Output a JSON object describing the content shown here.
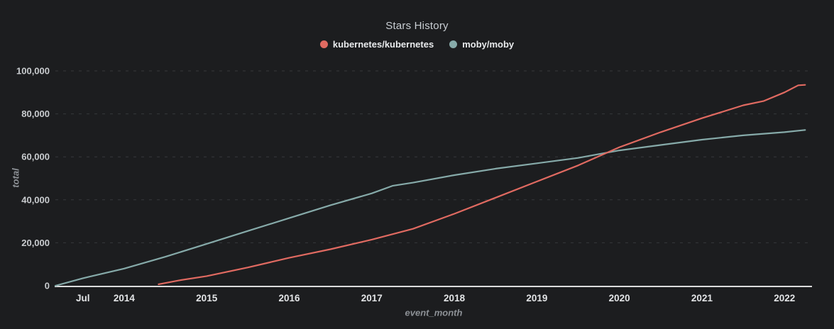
{
  "chart": {
    "title": "Stars History",
    "xlabel": "event_month",
    "ylabel": "total",
    "background_color": "#1c1d1f",
    "axis_color": "#dcdcdc",
    "grid_color": "#36383b"
  },
  "chart_data": {
    "type": "line",
    "title": "Stars History",
    "xlabel": "event_month",
    "ylabel": "total",
    "legend_position": "top",
    "grid": "horizontal-dashed",
    "x_axis": {
      "range": [
        "2013-03",
        "2022-05"
      ],
      "ticks": [
        {
          "label": "Jul",
          "date": "2013-07"
        },
        {
          "label": "2014",
          "date": "2014-01"
        },
        {
          "label": "2015",
          "date": "2015-01"
        },
        {
          "label": "2016",
          "date": "2016-01"
        },
        {
          "label": "2017",
          "date": "2017-01"
        },
        {
          "label": "2018",
          "date": "2018-01"
        },
        {
          "label": "2019",
          "date": "2019-01"
        },
        {
          "label": "2020",
          "date": "2020-01"
        },
        {
          "label": "2021",
          "date": "2021-01"
        },
        {
          "label": "2022",
          "date": "2022-01"
        }
      ]
    },
    "y_axis": {
      "range": [
        0,
        100000
      ],
      "ticks": [
        {
          "label": "0",
          "value": 0
        },
        {
          "label": "20,000",
          "value": 20000
        },
        {
          "label": "40,000",
          "value": 40000
        },
        {
          "label": "60,000",
          "value": 60000
        },
        {
          "label": "80,000",
          "value": 80000
        },
        {
          "label": "100,000",
          "value": 100000
        }
      ]
    },
    "series": [
      {
        "name": "moby/moby",
        "color": "#86aaa9",
        "points": [
          [
            "2013-03",
            0
          ],
          [
            "2013-07",
            3500
          ],
          [
            "2014-01",
            8000
          ],
          [
            "2014-07",
            13500
          ],
          [
            "2015-01",
            19500
          ],
          [
            "2015-07",
            25500
          ],
          [
            "2016-01",
            31500
          ],
          [
            "2016-07",
            37500
          ],
          [
            "2017-01",
            43000
          ],
          [
            "2017-04",
            46500
          ],
          [
            "2017-07",
            48000
          ],
          [
            "2018-01",
            51500
          ],
          [
            "2018-07",
            54500
          ],
          [
            "2019-01",
            57000
          ],
          [
            "2019-07",
            59500
          ],
          [
            "2020-01",
            63000
          ],
          [
            "2020-07",
            65500
          ],
          [
            "2021-01",
            68000
          ],
          [
            "2021-07",
            70000
          ],
          [
            "2022-01",
            71500
          ],
          [
            "2022-04",
            72500
          ]
        ]
      },
      {
        "name": "kubernetes/kubernetes",
        "color": "#e06a61",
        "points": [
          [
            "2014-06",
            700
          ],
          [
            "2014-09",
            2500
          ],
          [
            "2015-01",
            4500
          ],
          [
            "2015-07",
            8500
          ],
          [
            "2016-01",
            13000
          ],
          [
            "2016-07",
            17000
          ],
          [
            "2017-01",
            21500
          ],
          [
            "2017-07",
            26500
          ],
          [
            "2018-01",
            33500
          ],
          [
            "2018-07",
            41000
          ],
          [
            "2019-01",
            48500
          ],
          [
            "2019-07",
            56000
          ],
          [
            "2020-01",
            64500
          ],
          [
            "2020-07",
            71500
          ],
          [
            "2021-01",
            78000
          ],
          [
            "2021-07",
            84000
          ],
          [
            "2021-10",
            86000
          ],
          [
            "2022-01",
            90000
          ],
          [
            "2022-03",
            93300
          ],
          [
            "2022-04",
            93500
          ]
        ]
      }
    ]
  }
}
